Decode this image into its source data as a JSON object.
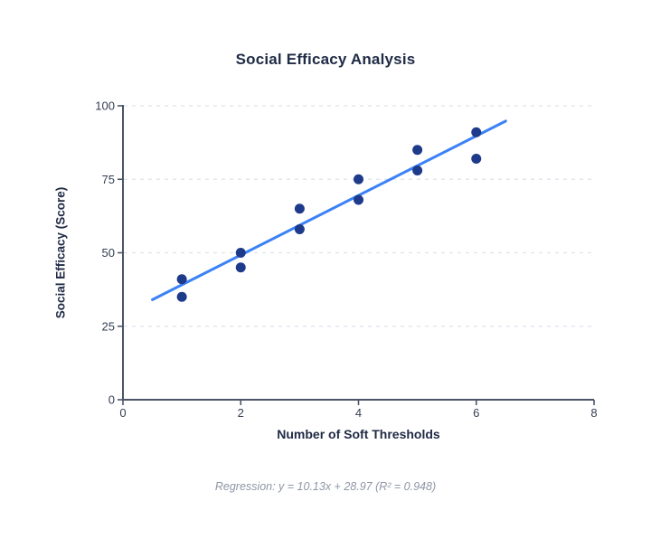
{
  "colors": {
    "background": "#ffffff",
    "point": "#1e3a8a",
    "regression_line": "#3b82f6",
    "grid": "#dde2ea",
    "axis": "#4b5566",
    "tick_label": "#333e52",
    "heading": "#202b45",
    "caption": "#8e97a6"
  },
  "chart_data": {
    "type": "scatter",
    "title": "Social Efficacy Analysis",
    "xlabel": "Number of Soft Thresholds",
    "ylabel": "Social Efficacy (Score)",
    "xlim": [
      0,
      8
    ],
    "ylim": [
      0,
      100
    ],
    "x_ticks": [
      0,
      2,
      4,
      6,
      8
    ],
    "y_ticks": [
      0,
      25,
      50,
      75,
      100
    ],
    "grid": "horizontal-dashed",
    "legend": "none",
    "points": [
      {
        "x": 1,
        "y": 41
      },
      {
        "x": 1,
        "y": 35
      },
      {
        "x": 2,
        "y": 50
      },
      {
        "x": 2,
        "y": 45
      },
      {
        "x": 3,
        "y": 65
      },
      {
        "x": 3,
        "y": 58
      },
      {
        "x": 4,
        "y": 75
      },
      {
        "x": 4,
        "y": 68
      },
      {
        "x": 5,
        "y": 85
      },
      {
        "x": 5,
        "y": 78
      },
      {
        "x": 6,
        "y": 91
      },
      {
        "x": 6,
        "y": 82
      }
    ],
    "regression": {
      "slope": 10.13,
      "intercept": 28.97,
      "r_squared": 0.948,
      "x_start": 0.5,
      "x_end": 6.5
    },
    "annotation": "Regression: y = 10.13x + 28.97 (R² = 0.948)"
  }
}
